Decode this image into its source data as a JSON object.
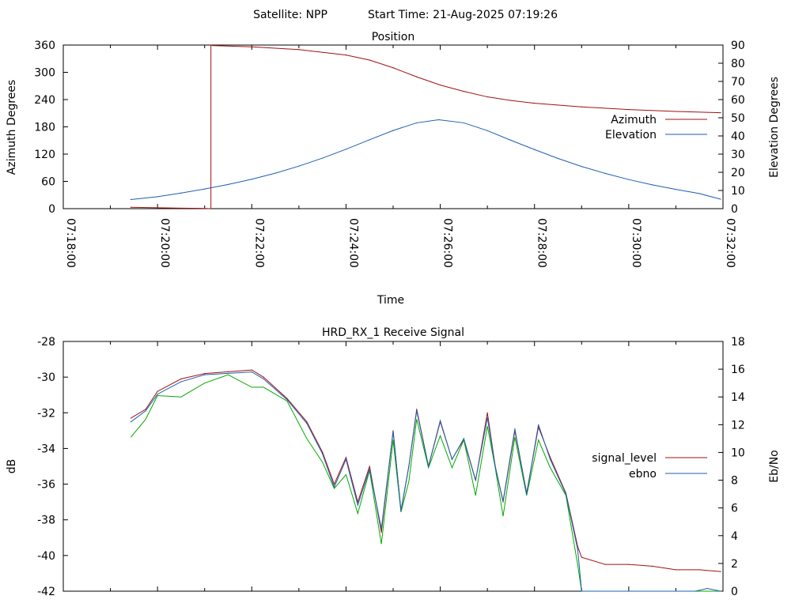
{
  "header": {
    "satellite_label": "Satellite: NPP",
    "start_time_label": "Start Time: 21-Aug-2025 07:19:26"
  },
  "colors": {
    "azimuth": "#a01010",
    "elevation": "#1f5fb0",
    "signal_level": "#a01010",
    "ebno_blue": "#1f5fb0",
    "ebno_green": "#00aa00",
    "axis": "#000000"
  },
  "chart_data": [
    {
      "type": "line",
      "title": "Position",
      "xlabel": "Time",
      "ylabel": "Azimuth Degrees",
      "y2label": "Elevation Degrees",
      "xlim": [
        "07:18:00",
        "07:32:00"
      ],
      "ylim": [
        0,
        360
      ],
      "y2lim": [
        0,
        90
      ],
      "x_tick_labels": [
        "07:18:00",
        "07:20:00",
        "07:22:00",
        "07:24:00",
        "07:26:00",
        "07:28:00",
        "07:30:00",
        "07:32:00"
      ],
      "y_tick_labels": [
        "0",
        "60",
        "120",
        "180",
        "240",
        "300",
        "360"
      ],
      "y2_tick_labels": [
        "0",
        "10",
        "20",
        "30",
        "40",
        "50",
        "60",
        "70",
        "80",
        "90"
      ],
      "legend_position": "right",
      "series": [
        {
          "name": "Azimuth",
          "axis": "left",
          "x": [
            "07:19:26",
            "07:20:00",
            "07:20:30",
            "07:21:00",
            "07:21:08",
            "07:21:08",
            "07:21:10",
            "07:22:00",
            "07:23:00",
            "07:24:00",
            "07:24:30",
            "07:25:00",
            "07:25:30",
            "07:26:00",
            "07:26:30",
            "07:27:00",
            "07:27:30",
            "07:28:00",
            "07:29:00",
            "07:30:00",
            "07:31:00",
            "07:31:57"
          ],
          "values": [
            3,
            2,
            1,
            0.5,
            0,
            360,
            359,
            356,
            350,
            338,
            327,
            310,
            290,
            272,
            258,
            246,
            238,
            232,
            224,
            218,
            214,
            211
          ]
        },
        {
          "name": "Elevation",
          "axis": "right",
          "x": [
            "07:19:26",
            "07:20:00",
            "07:20:30",
            "07:21:00",
            "07:21:30",
            "07:22:00",
            "07:22:30",
            "07:23:00",
            "07:23:30",
            "07:24:00",
            "07:24:30",
            "07:25:00",
            "07:25:30",
            "07:25:58",
            "07:26:30",
            "07:27:00",
            "07:27:30",
            "07:28:00",
            "07:28:30",
            "07:29:00",
            "07:29:30",
            "07:30:00",
            "07:30:30",
            "07:31:00",
            "07:31:30",
            "07:31:57"
          ],
          "values": [
            5,
            6.6,
            8.6,
            10.8,
            13.3,
            16.2,
            19.5,
            23.4,
            27.8,
            32.7,
            37.9,
            43,
            47.2,
            48.9,
            47.2,
            42.9,
            37.6,
            32.5,
            27.6,
            23.2,
            19.4,
            16,
            13.1,
            10.6,
            8.3,
            5.2
          ]
        }
      ]
    },
    {
      "type": "line",
      "title": "HRD_RX_1 Receive Signal",
      "ylabel": "dB",
      "y2label": "Eb/No",
      "xlim": [
        "07:18:00",
        "07:32:00"
      ],
      "ylim": [
        -42,
        -28
      ],
      "y2lim": [
        0,
        18
      ],
      "y_tick_labels": [
        "-42",
        "-40",
        "-38",
        "-36",
        "-34",
        "-32",
        "-30",
        "-28"
      ],
      "y2_tick_labels": [
        "0",
        "2",
        "4",
        "6",
        "8",
        "10",
        "12",
        "14",
        "16",
        "18"
      ],
      "legend_position": "right",
      "series": [
        {
          "name": "signal_level",
          "axis": "left",
          "color_key": "signal_level",
          "x": [
            "07:19:26",
            "07:19:45",
            "07:20:00",
            "07:20:30",
            "07:21:00",
            "07:21:30",
            "07:22:00",
            "07:22:15",
            "07:22:45",
            "07:23:10",
            "07:23:30",
            "07:23:45",
            "07:24:00",
            "07:24:15",
            "07:24:30",
            "07:24:45",
            "07:25:00",
            "07:25:10",
            "07:25:20",
            "07:25:30",
            "07:25:45",
            "07:26:00",
            "07:26:15",
            "07:26:30",
            "07:26:45",
            "07:27:00",
            "07:27:10",
            "07:27:20",
            "07:27:35",
            "07:27:50",
            "07:28:05",
            "07:28:20",
            "07:28:40",
            "07:28:55",
            "07:29:00",
            "07:29:30",
            "07:30:00",
            "07:30:30",
            "07:31:00",
            "07:31:30",
            "07:31:57"
          ],
          "values": [
            -32.3,
            -31.8,
            -30.8,
            -30.1,
            -29.8,
            -29.7,
            -29.6,
            -30.0,
            -31.2,
            -32.5,
            -34.2,
            -36.0,
            -34.5,
            -37.0,
            -35.0,
            -38.7,
            -33.0,
            -37.5,
            -35.0,
            -31.8,
            -35.0,
            -32.5,
            -34.6,
            -33.5,
            -35.8,
            -32.0,
            -35.0,
            -37.0,
            -33.0,
            -36.5,
            -32.8,
            -34.5,
            -36.5,
            -39.5,
            -40.1,
            -40.5,
            -40.5,
            -40.6,
            -40.8,
            -40.8,
            -40.9
          ]
        },
        {
          "name": "ebno",
          "axis": "right",
          "color_key": "ebno_blue",
          "x": [
            "07:19:26",
            "07:19:45",
            "07:20:00",
            "07:20:30",
            "07:21:00",
            "07:21:30",
            "07:22:00",
            "07:22:15",
            "07:22:45",
            "07:23:10",
            "07:23:30",
            "07:23:45",
            "07:24:00",
            "07:24:15",
            "07:24:30",
            "07:24:45",
            "07:25:00",
            "07:25:10",
            "07:25:20",
            "07:25:30",
            "07:25:45",
            "07:26:00",
            "07:26:15",
            "07:26:30",
            "07:26:45",
            "07:27:00",
            "07:27:10",
            "07:27:20",
            "07:27:35",
            "07:27:50",
            "07:28:05",
            "07:28:20",
            "07:28:40",
            "07:28:55",
            "07:29:00",
            "07:31:25",
            "07:31:40",
            "07:31:57"
          ],
          "values": [
            12.2,
            13.0,
            14.2,
            15.1,
            15.6,
            15.7,
            15.8,
            15.3,
            13.8,
            12.1,
            9.9,
            7.5,
            9.5,
            6.2,
            8.8,
            4.5,
            11.5,
            5.8,
            9.0,
            13.0,
            9.0,
            12.3,
            9.5,
            11.0,
            8.0,
            12.5,
            9.0,
            6.5,
            11.7,
            7.0,
            12.0,
            9.5,
            7.0,
            3.0,
            0.0,
            0.0,
            0.2,
            0.0
          ]
        }
      ]
    }
  ]
}
